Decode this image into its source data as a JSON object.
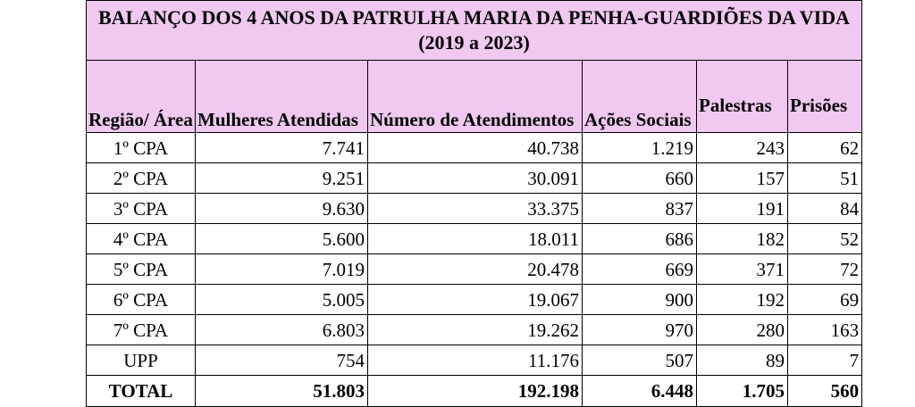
{
  "title": "BALANÇO DOS 4 ANOS DA PATRULHA MARIA DA PENHA-GUARDIÕES DA VIDA (2019 a 2023)",
  "columns": [
    "Região/ Área",
    "Mulheres Atendidas",
    "Número de Atendimentos",
    "Ações Sociais",
    "Palestras",
    "Prisões"
  ],
  "rows": [
    [
      "1º CPA",
      "7.741",
      "40.738",
      "1.219",
      "243",
      "62"
    ],
    [
      "2º CPA",
      "9.251",
      "30.091",
      "660",
      "157",
      "51"
    ],
    [
      "3º CPA",
      "9.630",
      "33.375",
      "837",
      "191",
      "84"
    ],
    [
      "4º CPA",
      "5.600",
      "18.011",
      "686",
      "182",
      "52"
    ],
    [
      "5º CPA",
      "7.019",
      "20.478",
      "669",
      "371",
      "72"
    ],
    [
      "6º CPA",
      "5.005",
      "19.067",
      "900",
      "192",
      "69"
    ],
    [
      "7º CPA",
      "6.803",
      "19.262",
      "970",
      "280",
      "163"
    ],
    [
      "UPP",
      "754",
      "11.176",
      "507",
      "89",
      "7"
    ]
  ],
  "total": [
    "TOTAL",
    "51.803",
    "192.198",
    "6.448",
    "1.705",
    "560"
  ],
  "colors": {
    "header_bg": "#f0c8f0"
  }
}
